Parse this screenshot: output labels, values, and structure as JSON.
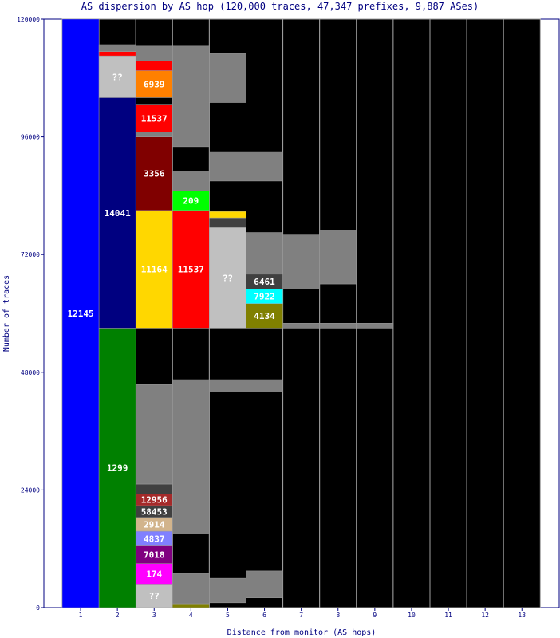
{
  "chart_data": {
    "type": "bar",
    "title": "AS dispersion by AS hop (120,000 traces, 47,347 prefixes, 9,887 ASes)",
    "xlabel": "Distance from monitor (AS hops)",
    "ylabel": "Number of traces",
    "ylim": [
      0,
      120000
    ],
    "yticks": [
      0,
      24000,
      48000,
      72000,
      96000,
      120000
    ],
    "categories": [
      "1",
      "2",
      "3",
      "4",
      "5",
      "6",
      "7",
      "8",
      "9",
      "10",
      "11",
      "12",
      "13"
    ],
    "colors": {
      "frame": "#000080",
      "background": "#000000",
      "many_small": "#808080",
      "separator": "#a0a0a0"
    },
    "segments": [
      {
        "hop": 1,
        "label": "12145",
        "low": 0,
        "high": 120000,
        "color": "#0000ff"
      },
      {
        "hop": 2,
        "label": "1299",
        "low": 0,
        "high": 57000,
        "color": "#008000"
      },
      {
        "hop": 2,
        "label": "14041",
        "low": 57000,
        "high": 104000,
        "color": "#000080"
      },
      {
        "hop": 2,
        "label": "??",
        "low": 104000,
        "high": 112500,
        "color": "#c0c0c0"
      },
      {
        "hop": 2,
        "label": "",
        "low": 112500,
        "high": 113400,
        "color": "#ff0000"
      },
      {
        "hop": 2,
        "label": "",
        "low": 113400,
        "high": 114800,
        "color": "#808080"
      },
      {
        "hop": 3,
        "label": "??",
        "low": 0,
        "high": 4800,
        "color": "#c0c0c0"
      },
      {
        "hop": 3,
        "label": "174",
        "low": 4800,
        "high": 9000,
        "color": "#ff00ff"
      },
      {
        "hop": 3,
        "label": "7018",
        "low": 9000,
        "high": 12600,
        "color": "#800080"
      },
      {
        "hop": 3,
        "label": "4837",
        "low": 12600,
        "high": 15600,
        "color": "#8080ff"
      },
      {
        "hop": 3,
        "label": "2914",
        "low": 15600,
        "high": 18400,
        "color": "#d2b48c"
      },
      {
        "hop": 3,
        "label": "58453",
        "low": 18400,
        "high": 20800,
        "color": "#404040"
      },
      {
        "hop": 3,
        "label": "12956",
        "low": 20800,
        "high": 23200,
        "color": "#a52a2a"
      },
      {
        "hop": 3,
        "label": "",
        "low": 23200,
        "high": 25200,
        "color": "#404040"
      },
      {
        "hop": 3,
        "label": "",
        "low": 25200,
        "high": 45500,
        "color": "#808080"
      },
      {
        "hop": 3,
        "label": "11164",
        "low": 57000,
        "high": 81000,
        "color": "#ffd700"
      },
      {
        "hop": 3,
        "label": "3356",
        "low": 81000,
        "high": 96000,
        "color": "#800000"
      },
      {
        "hop": 3,
        "label": "",
        "low": 96000,
        "high": 97000,
        "color": "#808080"
      },
      {
        "hop": 3,
        "label": "11537",
        "low": 97000,
        "high": 102500,
        "color": "#ff0000"
      },
      {
        "hop": 3,
        "label": "",
        "low": 102500,
        "high": 104000,
        "color": "#000000"
      },
      {
        "hop": 3,
        "label": "6939",
        "low": 104000,
        "high": 109500,
        "color": "#ff8000"
      },
      {
        "hop": 3,
        "label": "",
        "low": 109500,
        "high": 111500,
        "color": "#ff0000"
      },
      {
        "hop": 3,
        "label": "",
        "low": 111500,
        "high": 114500,
        "color": "#808080"
      },
      {
        "hop": 4,
        "label": "",
        "low": 0,
        "high": 800,
        "color": "#808000"
      },
      {
        "hop": 4,
        "label": "",
        "low": 800,
        "high": 7000,
        "color": "#808080"
      },
      {
        "hop": 4,
        "label": "",
        "low": 15000,
        "high": 46500,
        "color": "#808080"
      },
      {
        "hop": 4,
        "label": "11537",
        "low": 57000,
        "high": 81000,
        "color": "#ff0000"
      },
      {
        "hop": 4,
        "label": "209",
        "low": 81000,
        "high": 85000,
        "color": "#00ff00"
      },
      {
        "hop": 4,
        "label": "",
        "low": 85000,
        "high": 89000,
        "color": "#808080"
      },
      {
        "hop": 4,
        "label": "",
        "low": 94000,
        "high": 114500,
        "color": "#808080"
      },
      {
        "hop": 5,
        "label": "",
        "low": 1000,
        "high": 6000,
        "color": "#808080"
      },
      {
        "hop": 5,
        "label": "",
        "low": 44000,
        "high": 46500,
        "color": "#808080"
      },
      {
        "hop": 5,
        "label": "??",
        "low": 57000,
        "high": 77500,
        "color": "#c0c0c0"
      },
      {
        "hop": 5,
        "label": "",
        "low": 77500,
        "high": 79500,
        "color": "#404040"
      },
      {
        "hop": 5,
        "label": "",
        "low": 79500,
        "high": 80800,
        "color": "#ffd700"
      },
      {
        "hop": 5,
        "label": "",
        "low": 87000,
        "high": 93000,
        "color": "#808080"
      },
      {
        "hop": 5,
        "label": "",
        "low": 103000,
        "high": 113000,
        "color": "#808080"
      },
      {
        "hop": 6,
        "label": "",
        "low": 2000,
        "high": 7500,
        "color": "#808080"
      },
      {
        "hop": 6,
        "label": "",
        "low": 44000,
        "high": 46500,
        "color": "#808080"
      },
      {
        "hop": 6,
        "label": "4134",
        "low": 57000,
        "high": 62000,
        "color": "#808000"
      },
      {
        "hop": 6,
        "label": "7922",
        "low": 62000,
        "high": 65000,
        "color": "#00ffff"
      },
      {
        "hop": 6,
        "label": "6461",
        "low": 65000,
        "high": 68000,
        "color": "#404040"
      },
      {
        "hop": 6,
        "label": "",
        "low": 68000,
        "high": 76500,
        "color": "#808080"
      },
      {
        "hop": 6,
        "label": "",
        "low": 87000,
        "high": 93000,
        "color": "#808080"
      },
      {
        "hop": 7,
        "label": "",
        "low": 57000,
        "high": 58000,
        "color": "#808080"
      },
      {
        "hop": 7,
        "label": "",
        "low": 65000,
        "high": 76000,
        "color": "#808080"
      },
      {
        "hop": 8,
        "label": "",
        "low": 57000,
        "high": 58000,
        "color": "#808080"
      },
      {
        "hop": 8,
        "label": "",
        "low": 66000,
        "high": 77000,
        "color": "#808080"
      },
      {
        "hop": 9,
        "label": "",
        "low": 57000,
        "high": 58000,
        "color": "#808080"
      }
    ]
  }
}
